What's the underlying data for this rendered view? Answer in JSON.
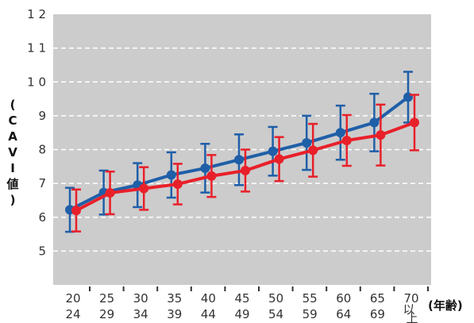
{
  "chart_data": {
    "type": "line",
    "ylabel": "(CAVI値)",
    "xlabel": "(年齢)",
    "ylim": [
      4,
      12
    ],
    "y_ticks": [
      "1 2",
      "1 1",
      "1 0",
      "9",
      "8",
      "7",
      "6",
      "5"
    ],
    "categories": [
      [
        "20",
        "24"
      ],
      [
        "25",
        "29"
      ],
      [
        "30",
        "34"
      ],
      [
        "35",
        "39"
      ],
      [
        "40",
        "44"
      ],
      [
        "45",
        "49"
      ],
      [
        "50",
        "54"
      ],
      [
        "55",
        "59"
      ],
      [
        "60",
        "64"
      ],
      [
        "65",
        "69"
      ],
      [
        "70",
        "以上"
      ]
    ],
    "grid": true,
    "series": [
      {
        "color": "#1f5fa8",
        "values": [
          6.22,
          6.73,
          6.95,
          7.25,
          7.45,
          7.7,
          7.95,
          8.2,
          8.5,
          8.8,
          9.55
        ],
        "error": [
          0.65,
          0.65,
          0.65,
          0.67,
          0.72,
          0.75,
          0.72,
          0.8,
          0.8,
          0.85,
          0.75
        ]
      },
      {
        "color": "#e8202a",
        "values": [
          6.2,
          6.72,
          6.85,
          6.98,
          7.22,
          7.38,
          7.72,
          7.98,
          8.27,
          8.43,
          8.8
        ],
        "error": [
          0.62,
          0.63,
          0.63,
          0.6,
          0.62,
          0.62,
          0.65,
          0.78,
          0.75,
          0.9,
          0.82
        ]
      }
    ],
    "colors": {
      "plot_background": "#cccccc",
      "gridline": "#ffffff"
    }
  }
}
